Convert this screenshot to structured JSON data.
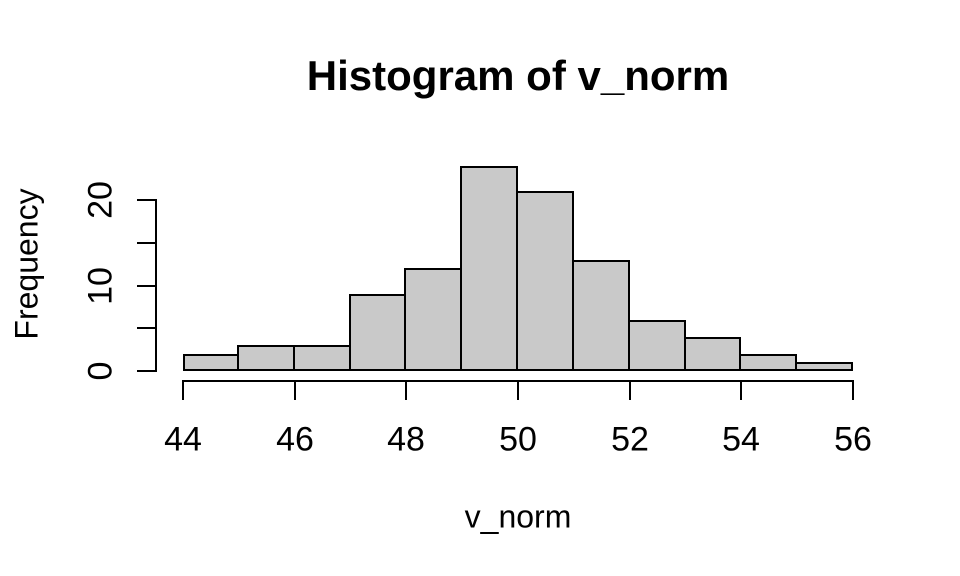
{
  "chart_data": {
    "type": "bar",
    "subtype": "histogram",
    "title": "Histogram of v_norm",
    "xlabel": "v_norm",
    "ylabel": "Frequency",
    "bin_edges": [
      44,
      45,
      46,
      47,
      48,
      49,
      50,
      51,
      52,
      53,
      54,
      55,
      56
    ],
    "counts": [
      2,
      3,
      3,
      9,
      12,
      24,
      21,
      13,
      6,
      4,
      2,
      1
    ],
    "x_ticks": [
      "44",
      "46",
      "48",
      "50",
      "52",
      "54",
      "56"
    ],
    "x_tick_values": [
      44,
      46,
      48,
      50,
      52,
      54,
      56
    ],
    "y_tick_values": [
      0,
      5,
      10,
      15,
      20
    ],
    "y_labeled_ticks": [
      0,
      10,
      20
    ],
    "xlim": [
      44,
      56
    ],
    "ylim": [
      0,
      24
    ],
    "grid": false,
    "legend": null,
    "colors": {
      "bar_fill": "#C9C9C9",
      "bar_border": "#000000",
      "axis": "#000000",
      "text": "#000000",
      "background": "#FFFFFF"
    }
  }
}
